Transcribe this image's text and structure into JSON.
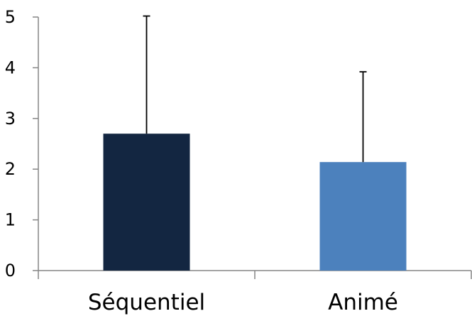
{
  "chart_data": {
    "type": "bar",
    "title": "",
    "xlabel": "",
    "ylabel": "",
    "categories": [
      "Séquentiel",
      "Animé"
    ],
    "values": [
      2.7,
      2.14
    ],
    "error_upper": [
      5.02,
      3.92
    ],
    "ylim": [
      0,
      5
    ],
    "yticks": [
      "0",
      "1",
      "2",
      "3",
      "4",
      "5"
    ],
    "bar_colors": [
      "#132641",
      "#4c81bd"
    ],
    "grid": false,
    "legend": "none"
  }
}
